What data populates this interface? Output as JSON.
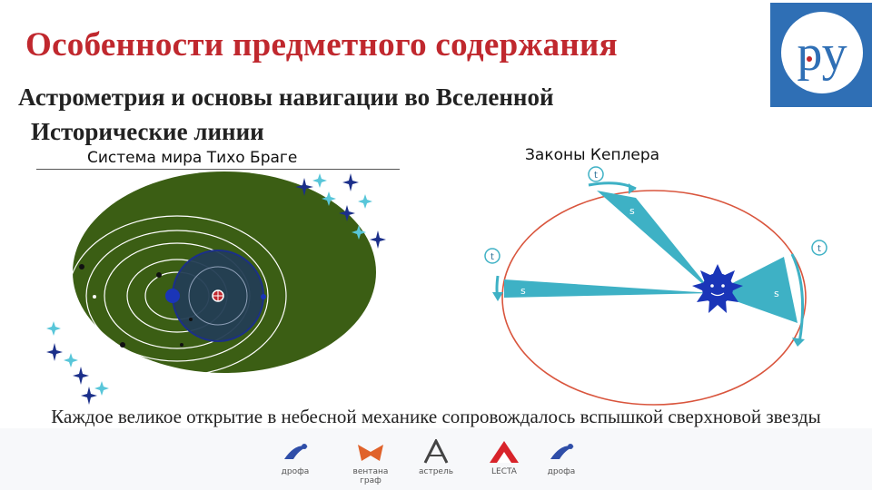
{
  "slide": {
    "title": "Особенности предметного содержания",
    "subtitle_line1": "Астрометрия и основы навигации во Вселенной",
    "subtitle_line2": "Исторические линии",
    "caption": "Каждое великое открытие в небесной механике сопровождалось вспышкой сверхновой звезды"
  },
  "tycho_panel": {
    "label": "Система мира Тихо Браге"
  },
  "kepler_panel": {
    "label": "Законы Кеплера",
    "time_marker": "t",
    "area_marker": "s"
  },
  "logo": {
    "text": "ру",
    "color": "#2f6fb5",
    "accent": "#c0282e"
  },
  "publishers": [
    {
      "name": "дрофа",
      "icon": "drofa-logo-icon"
    },
    {
      "name": "вентана граф",
      "icon": "ventana-logo-icon"
    },
    {
      "name": "астрель",
      "icon": "astrel-logo-icon"
    },
    {
      "name": "LECTA",
      "icon": "lecta-logo-icon"
    },
    {
      "name": "дрофа",
      "icon": "drofa-logo-icon"
    }
  ],
  "colors": {
    "title": "#c0282e",
    "tycho_background": "#3b5e14",
    "star": "#1b2f8a",
    "star_light": "#58c6d9",
    "kepler_orbit": "#d9553d",
    "kepler_sector": "#3eb1c5",
    "sun": "#1a35b8"
  }
}
